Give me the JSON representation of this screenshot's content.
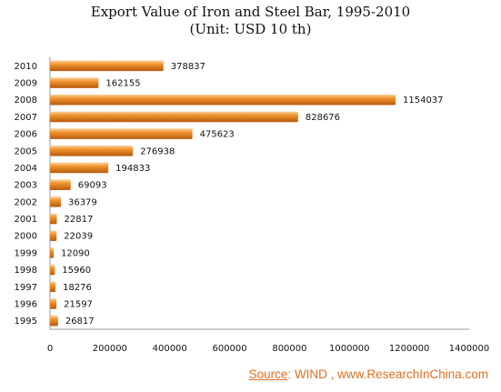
{
  "chart_data": {
    "type": "bar",
    "orientation": "horizontal",
    "title": "Export Value of Iron and Steel Bar, 1995-2010",
    "subtitle": "(Unit: USD 10 th)",
    "categories": [
      "2010",
      "2009",
      "2008",
      "2007",
      "2006",
      "2005",
      "2004",
      "2003",
      "2002",
      "2001",
      "2000",
      "1999",
      "1998",
      "1997",
      "1996",
      "1995"
    ],
    "values": [
      378837,
      162155,
      1154037,
      828676,
      475623,
      276938,
      194833,
      69093,
      36379,
      22817,
      22039,
      12090,
      15960,
      18276,
      21597,
      26817
    ],
    "xlim": [
      0,
      1400000
    ],
    "xticks": [
      0,
      200000,
      400000,
      600000,
      800000,
      1000000,
      1200000,
      1400000
    ],
    "xtick_labels": [
      "0",
      "200000",
      "400000",
      "600000",
      "800000",
      "1000000",
      "1200000",
      "1400000"
    ],
    "grid": false,
    "bar_color": "#e8841e"
  },
  "source": {
    "label": "Source",
    "text": ": WIND , www.ResearchInChina.com"
  }
}
